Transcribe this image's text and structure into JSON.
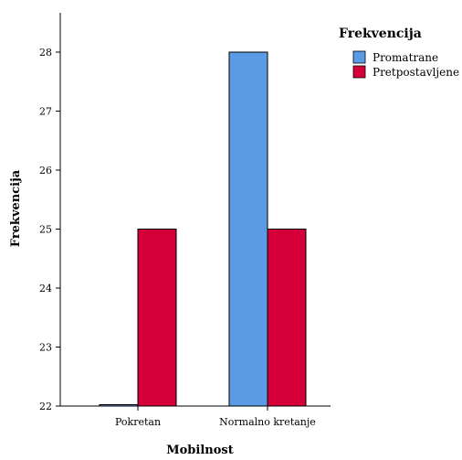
{
  "chart_data": {
    "type": "bar",
    "title": "",
    "xlabel": "Mobilnost",
    "ylabel": "Frekvencija",
    "categories": [
      "Pokretan",
      "Normalno kretanje"
    ],
    "series": [
      {
        "name": "Promatrane",
        "values": [
          22,
          28
        ],
        "color": "#5b9be6"
      },
      {
        "name": "Pretpostavljene",
        "values": [
          25,
          25
        ],
        "color": "#d5003a"
      }
    ],
    "ylim": [
      22,
      28
    ],
    "yticks": [
      22,
      23,
      24,
      25,
      26,
      27,
      28
    ],
    "grid": false,
    "legend": {
      "title": "Frekvencija",
      "position": "top-right"
    }
  }
}
